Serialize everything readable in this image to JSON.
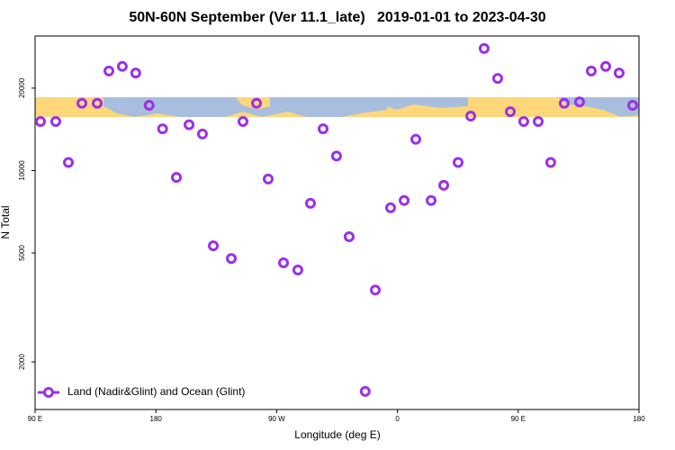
{
  "chart_data": {
    "type": "scatter",
    "title": "50N-60N September (Ver 11.1_late)   2019-01-01 to 2023-04-30",
    "x_label": "Longitude (deg E)",
    "y_label": "N Total",
    "xlim": [
      90,
      540
    ],
    "ylim": [
      1340,
      31000
    ],
    "ylog": true,
    "xticks": [
      {
        "value": 90,
        "label": "90 E"
      },
      180,
      {
        "value": 270,
        "label": "90 W"
      },
      {
        "value": 360,
        "label": "0"
      },
      {
        "value": 450,
        "label": "90 E"
      },
      {
        "value": 540,
        "label": "180"
      }
    ],
    "yticks": [
      2000,
      5000,
      10000,
      20000
    ],
    "legend": "bottom-left",
    "series": [
      {
        "name": "Land (Nadir&Glint) and Ocean (Glint)",
        "color": "#9b30e8",
        "x": [
          94,
          105.4,
          114.8,
          124.9,
          136.3,
          145,
          155,
          165,
          175,
          185,
          195.3,
          204.7,
          214.7,
          222.8,
          236.2,
          244.9,
          255,
          263.7,
          275.1,
          285.8,
          295.2,
          304.6,
          314.6,
          324,
          336,
          343.5,
          354.9,
          365,
          373.7,
          385.1,
          394.5,
          405.2,
          414.6,
          424.6,
          434.7,
          444.1,
          454.1,
          464.9,
          474.2,
          484.3,
          495.7,
          504.4,
          515.2,
          525.2,
          535.3
        ],
        "values": [
          15100,
          15100,
          10700,
          17600,
          17600,
          23100,
          24000,
          22700,
          17300,
          14200,
          9440,
          14700,
          13600,
          5310,
          4770,
          15100,
          17600,
          9310,
          4600,
          4330,
          7590,
          14200,
          11300,
          5730,
          1560,
          3660,
          7310,
          7770,
          13000,
          7770,
          8830,
          10700,
          15800,
          27900,
          21700,
          16400,
          15100,
          15100,
          10700,
          17600,
          17800,
          23100,
          24000,
          22700,
          17300
        ]
      }
    ]
  }
}
